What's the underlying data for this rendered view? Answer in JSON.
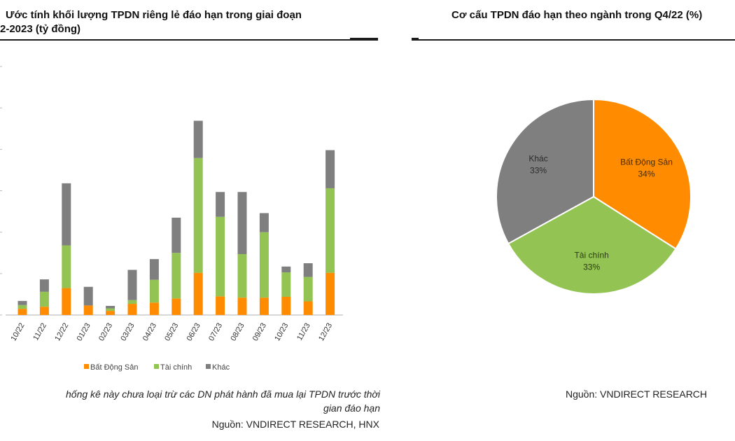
{
  "left_panel": {
    "title_line1": "Ước tính khối lượng TPDN riêng lẻ đáo hạn trong giai đoạn",
    "title_line2": "2-2023 (tỷ đồng)",
    "footnote_line1": "hống kê này chưa loại trừ các DN phát hành đã mua lại TPDN trước thời",
    "footnote_line2": "gian đáo hạn",
    "source": "Nguồn: VNDIRECT RESEARCH, HNX"
  },
  "right_panel": {
    "title": "Cơ cấu TPDN đáo hạn theo ngành trong Q4/22 (%)",
    "source": "Nguồn: VNDIRECT RESEARCH"
  },
  "colors": {
    "bat_dong_san": "#ff8c00",
    "tai_chinh": "#92c353",
    "khac": "#7f7f7f"
  },
  "chart_data": [
    {
      "type": "bar",
      "stacked": true,
      "title": "Ước tính khối lượng TPDN riêng lẻ đáo hạn trong giai đoạn 2-2023 (tỷ đồng)",
      "categories": [
        "10/22",
        "11/22",
        "12/22",
        "01/23",
        "02/23",
        "03/23",
        "04/23",
        "05/23",
        "06/23",
        "07/23",
        "08/23",
        "09/23",
        "10/23",
        "11/23",
        "12/23"
      ],
      "series": [
        {
          "name": "Bất Động Sản",
          "values": [
            1.5,
            2.0,
            6.5,
            2.3,
            1.0,
            2.7,
            3.0,
            4.0,
            10.2,
            4.5,
            4.2,
            4.2,
            4.4,
            3.3,
            10.2
          ]
        },
        {
          "name": "Tài chính",
          "values": [
            0.9,
            3.6,
            10.3,
            0,
            0.6,
            0.9,
            5.5,
            11.0,
            27.7,
            19.2,
            10.5,
            15.8,
            5.9,
            5.9,
            20.4
          ]
        },
        {
          "name": "Khác",
          "values": [
            1.0,
            3.0,
            15.0,
            4.5,
            0.6,
            7.3,
            5.0,
            8.5,
            9.0,
            6.0,
            15.0,
            4.6,
            1.4,
            3.3,
            9.2
          ]
        }
      ],
      "legend_position": "bottom"
    },
    {
      "type": "pie",
      "title": "Cơ cấu TPDN đáo hạn theo ngành trong Q4/22 (%)",
      "slices": [
        {
          "label": "Bất Động Sản",
          "value": 34,
          "value_label": "34%"
        },
        {
          "label": "Tài chính",
          "value": 33,
          "value_label": "33%"
        },
        {
          "label": "Khác",
          "value": 33,
          "value_label": "33%"
        }
      ]
    }
  ]
}
